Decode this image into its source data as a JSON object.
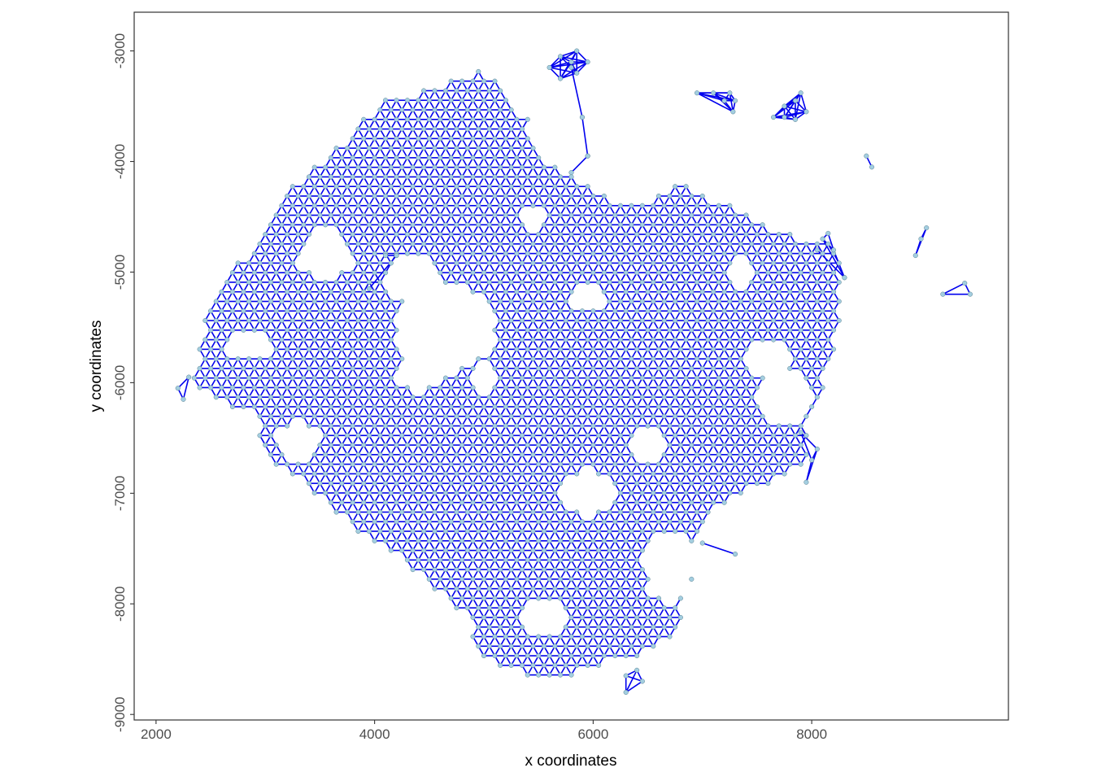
{
  "chart_data": {
    "type": "scatter",
    "title": "",
    "xlabel": "x coordinates",
    "ylabel": "y coordinates",
    "xlim": [
      1800,
      9800
    ],
    "ylim": [
      -9050,
      -2650
    ],
    "x_ticks": [
      2000,
      4000,
      6000,
      8000
    ],
    "x_tick_labels": [
      "2000",
      "4000",
      "6000",
      "8000"
    ],
    "y_ticks": [
      -3000,
      -4000,
      -5000,
      -6000,
      -7000,
      -8000,
      -9000
    ],
    "y_tick_labels": [
      "-3000",
      "-4000",
      "-5000",
      "-6000",
      "-7000",
      "-8000",
      "-9000"
    ],
    "grid": false,
    "point_color": "#a3cee0",
    "point_stroke": "#5a8090",
    "edge_color": "#0000ee",
    "lattice": {
      "spacing": 100,
      "boundary": [
        [
          2300,
          -6050
        ],
        [
          2450,
          -5300
        ],
        [
          2700,
          -4950
        ],
        [
          3000,
          -4600
        ],
        [
          3300,
          -4150
        ],
        [
          3650,
          -3850
        ],
        [
          4100,
          -3420
        ],
        [
          4600,
          -3300
        ],
        [
          5000,
          -3150
        ],
        [
          5400,
          -3600
        ],
        [
          5500,
          -3950
        ],
        [
          5800,
          -4100
        ],
        [
          6300,
          -4400
        ],
        [
          6800,
          -4200
        ],
        [
          7300,
          -4400
        ],
        [
          7800,
          -4650
        ],
        [
          8250,
          -4750
        ],
        [
          8300,
          -5250
        ],
        [
          8200,
          -5800
        ],
        [
          8000,
          -6350
        ],
        [
          7950,
          -6750
        ],
        [
          7550,
          -6950
        ],
        [
          7200,
          -7100
        ],
        [
          6950,
          -7450
        ],
        [
          6900,
          -7850
        ],
        [
          6750,
          -8300
        ],
        [
          6350,
          -8500
        ],
        [
          5800,
          -8650
        ],
        [
          5400,
          -8650
        ],
        [
          5000,
          -8500
        ],
        [
          4800,
          -8100
        ],
        [
          4300,
          -7650
        ],
        [
          3900,
          -7400
        ],
        [
          3500,
          -7050
        ],
        [
          3100,
          -6750
        ],
        [
          2850,
          -6300
        ]
      ],
      "holes": [
        {
          "cx": 4650,
          "cy": -5500,
          "rx": 420,
          "ry": 380
        },
        {
          "cx": 4350,
          "cy": -5050,
          "rx": 220,
          "ry": 200
        },
        {
          "cx": 3550,
          "cy": -4850,
          "rx": 230,
          "ry": 200
        },
        {
          "cx": 4400,
          "cy": -5900,
          "rx": 200,
          "ry": 160
        },
        {
          "cx": 5950,
          "cy": -7000,
          "rx": 220,
          "ry": 180
        },
        {
          "cx": 6700,
          "cy": -7650,
          "rx": 220,
          "ry": 300
        },
        {
          "cx": 7750,
          "cy": -6150,
          "rx": 260,
          "ry": 230
        },
        {
          "cx": 7600,
          "cy": -5800,
          "rx": 200,
          "ry": 150
        },
        {
          "cx": 3300,
          "cy": -6550,
          "rx": 180,
          "ry": 180
        },
        {
          "cx": 5950,
          "cy": -5250,
          "rx": 130,
          "ry": 100
        },
        {
          "cx": 6500,
          "cy": -6550,
          "rx": 140,
          "ry": 110
        },
        {
          "cx": 5450,
          "cy": -4500,
          "rx": 110,
          "ry": 100
        },
        {
          "cx": 7350,
          "cy": -5000,
          "rx": 120,
          "ry": 100
        },
        {
          "cx": 5550,
          "cy": -8100,
          "rx": 180,
          "ry": 150
        },
        {
          "cx": 2850,
          "cy": -5650,
          "rx": 200,
          "ry": 120
        },
        {
          "cx": 5000,
          "cy": -5950,
          "rx": 110,
          "ry": 100
        }
      ]
    },
    "islands": [
      {
        "points": [
          [
            5700,
            -3050
          ],
          [
            5850,
            -3000
          ],
          [
            5950,
            -3100
          ],
          [
            5850,
            -3200
          ],
          [
            5700,
            -3250
          ],
          [
            5800,
            -3100
          ],
          [
            5600,
            -3150
          ]
        ]
      },
      {
        "points": [
          [
            6950,
            -3380
          ],
          [
            7100,
            -3380
          ],
          [
            7250,
            -3380
          ],
          [
            7300,
            -3450
          ],
          [
            7280,
            -3550
          ],
          [
            7200,
            -3450
          ]
        ]
      },
      {
        "points": [
          [
            7650,
            -3600
          ],
          [
            7750,
            -3500
          ],
          [
            7850,
            -3450
          ],
          [
            7950,
            -3550
          ],
          [
            7850,
            -3620
          ],
          [
            7750,
            -3600
          ],
          [
            7900,
            -3380
          ]
        ]
      },
      {
        "points": [
          [
            8500,
            -3950
          ],
          [
            8550,
            -4050
          ]
        ]
      },
      {
        "points": [
          [
            9050,
            -4600
          ],
          [
            9000,
            -4700
          ],
          [
            8950,
            -4850
          ]
        ]
      },
      {
        "points": [
          [
            9200,
            -5200
          ],
          [
            9400,
            -5100
          ],
          [
            9450,
            -5200
          ]
        ]
      },
      {
        "points": [
          [
            6300,
            -8650
          ],
          [
            6450,
            -8700
          ],
          [
            6300,
            -8800
          ],
          [
            6400,
            -8600
          ]
        ]
      },
      {
        "points": [
          [
            2200,
            -6050
          ],
          [
            2250,
            -6150
          ],
          [
            2300,
            -5950
          ]
        ]
      },
      {
        "points": [
          [
            8100,
            -4700
          ],
          [
            8200,
            -4800
          ],
          [
            8300,
            -5050
          ],
          [
            8150,
            -4650
          ]
        ]
      },
      {
        "points": [
          [
            7900,
            -6450
          ],
          [
            8050,
            -6600
          ],
          [
            8000,
            -6700
          ],
          [
            7950,
            -6900
          ]
        ]
      }
    ],
    "spokes": [
      [
        [
          5800,
          -3150
        ],
        [
          5900,
          -3600
        ]
      ],
      [
        [
          5900,
          -3600
        ],
        [
          5950,
          -3950
        ]
      ],
      [
        [
          5950,
          -3950
        ],
        [
          5800,
          -4100
        ]
      ],
      [
        [
          4100,
          -4850
        ],
        [
          4200,
          -4850
        ]
      ],
      [
        [
          3950,
          -5150
        ],
        [
          4200,
          -4850
        ]
      ],
      [
        [
          7000,
          -7450
        ],
        [
          7300,
          -7550
        ]
      ],
      [
        [
          8300,
          -5050
        ],
        [
          8050,
          -4800
        ]
      ]
    ]
  }
}
